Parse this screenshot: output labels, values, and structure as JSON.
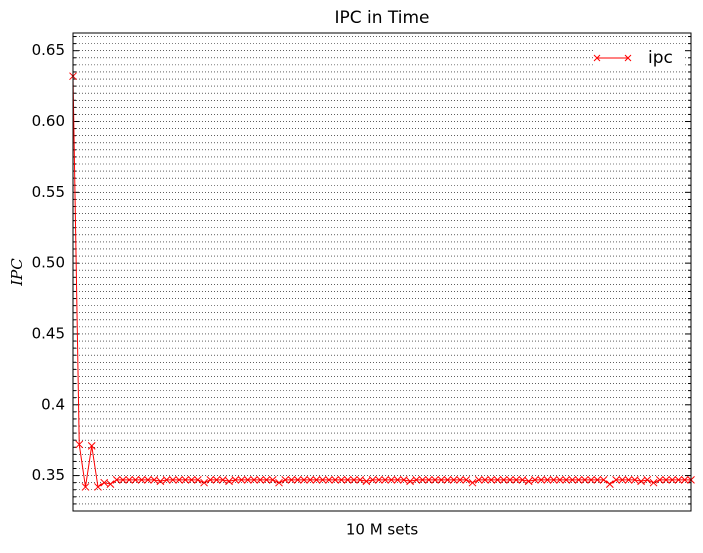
{
  "chart_data": {
    "type": "line",
    "title": "IPC in Time",
    "xlabel": "10 M sets",
    "ylabel": "IPC",
    "x": [
      0,
      1,
      2,
      3,
      4,
      5,
      6,
      7,
      8,
      9,
      10,
      11,
      12,
      13,
      14,
      15,
      16,
      17,
      18,
      19,
      20,
      21,
      22,
      23,
      24,
      25,
      26,
      27,
      28,
      29,
      30,
      31,
      32,
      33,
      34,
      35,
      36,
      37,
      38,
      39,
      40,
      41,
      42,
      43,
      44,
      45,
      46,
      47,
      48,
      49,
      50,
      51,
      52,
      53,
      54,
      55,
      56,
      57,
      58,
      59,
      60,
      61,
      62,
      63,
      64,
      65,
      66,
      67,
      68,
      69,
      70,
      71,
      72,
      73,
      74,
      75,
      76,
      77,
      78,
      79,
      80,
      81,
      82,
      83,
      84,
      85,
      86,
      87,
      88,
      89,
      90,
      91,
      92,
      93,
      94,
      95,
      96,
      97,
      98,
      99
    ],
    "series": [
      {
        "name": "ipc",
        "color": "#ff0000",
        "values": [
          0.632,
          0.372,
          0.342,
          0.371,
          0.342,
          0.345,
          0.344,
          0.347,
          0.347,
          0.347,
          0.347,
          0.347,
          0.347,
          0.347,
          0.346,
          0.347,
          0.347,
          0.347,
          0.347,
          0.347,
          0.347,
          0.345,
          0.347,
          0.347,
          0.347,
          0.346,
          0.347,
          0.347,
          0.347,
          0.347,
          0.347,
          0.347,
          0.347,
          0.345,
          0.347,
          0.347,
          0.347,
          0.347,
          0.347,
          0.347,
          0.347,
          0.347,
          0.347,
          0.347,
          0.347,
          0.347,
          0.347,
          0.346,
          0.347,
          0.347,
          0.347,
          0.347,
          0.347,
          0.347,
          0.346,
          0.347,
          0.347,
          0.347,
          0.347,
          0.347,
          0.347,
          0.347,
          0.347,
          0.347,
          0.345,
          0.347,
          0.347,
          0.347,
          0.347,
          0.347,
          0.347,
          0.347,
          0.347,
          0.346,
          0.347,
          0.347,
          0.347,
          0.347,
          0.347,
          0.347,
          0.347,
          0.347,
          0.347,
          0.347,
          0.347,
          0.347,
          0.344,
          0.347,
          0.347,
          0.347,
          0.347,
          0.346,
          0.347,
          0.345,
          0.347,
          0.347,
          0.347,
          0.347,
          0.347,
          0.347
        ]
      }
    ],
    "xlim": [
      0,
      99
    ],
    "ylim": [
      0.325,
      0.6625
    ],
    "yticks": [
      0.35,
      0.4,
      {
        "value": 0.45,
        "label": "0.45"
      },
      {
        "value": 0.5,
        "label": "0.50"
      },
      0.55,
      {
        "value": 0.6,
        "label": "0.60"
      },
      0.65
    ],
    "yminorticks": [
      0.33,
      0.335,
      0.34,
      0.345,
      0.355,
      0.36,
      0.365,
      0.37,
      0.375,
      0.38,
      0.385,
      0.39,
      0.395,
      0.405,
      0.41,
      0.415,
      0.42,
      0.425,
      0.43,
      0.435,
      0.44,
      0.445,
      0.455,
      0.46,
      0.465,
      0.47,
      0.475,
      0.48,
      0.485,
      0.49,
      0.495,
      0.505,
      0.51,
      0.515,
      0.52,
      0.525,
      0.53,
      0.535,
      0.54,
      0.545,
      0.555,
      0.56,
      0.565,
      0.57,
      0.575,
      0.58,
      0.585,
      0.59,
      0.595,
      0.605,
      0.61,
      0.615,
      0.62,
      0.625,
      0.63,
      0.635,
      0.64,
      0.645,
      0.655,
      0.66
    ],
    "grid": true,
    "legend": "upper right"
  }
}
